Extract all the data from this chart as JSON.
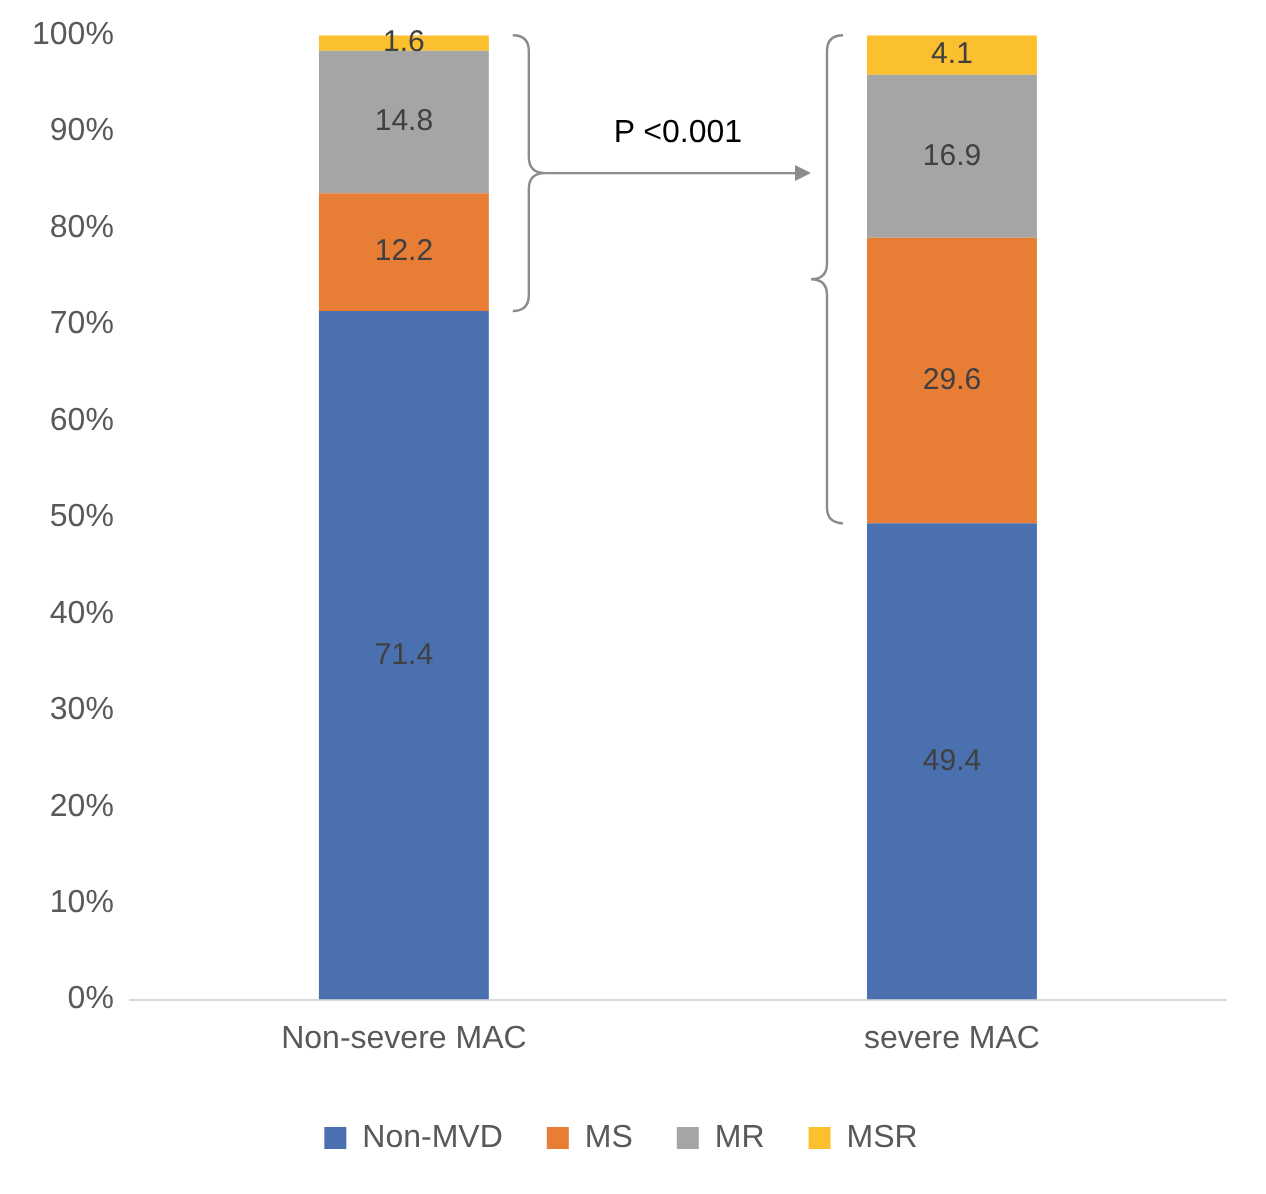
{
  "chart_data": {
    "type": "bar",
    "stacked": true,
    "categories": [
      "Non-severe MAC",
      "severe MAC"
    ],
    "series": [
      {
        "name": "Non-MVD",
        "color": "#4a70b0",
        "values": [
          71.4,
          49.4
        ]
      },
      {
        "name": "MS",
        "color": "#e87d36",
        "values": [
          12.2,
          29.6
        ]
      },
      {
        "name": "MR",
        "color": "#a5a5a5",
        "values": [
          14.8,
          16.9
        ]
      },
      {
        "name": "MSR",
        "color": "#fbc02d",
        "values": [
          1.6,
          4.1
        ]
      }
    ],
    "ylim": [
      0,
      100
    ],
    "yticks": [
      {
        "value": 0,
        "label": "0%"
      },
      {
        "value": 10,
        "label": "10%"
      },
      {
        "value": 20,
        "label": "20%"
      },
      {
        "value": 30,
        "label": "30%"
      },
      {
        "value": 40,
        "label": "40%"
      },
      {
        "value": 50,
        "label": "50%"
      },
      {
        "value": 60,
        "label": "60%"
      },
      {
        "value": 70,
        "label": "70%"
      },
      {
        "value": 80,
        "label": "80%"
      },
      {
        "value": 90,
        "label": "90%"
      },
      {
        "value": 100,
        "label": "100%"
      }
    ],
    "grid": false,
    "legend": "bottom",
    "data_labels": true,
    "annotations": [
      "P <0.001"
    ]
  }
}
